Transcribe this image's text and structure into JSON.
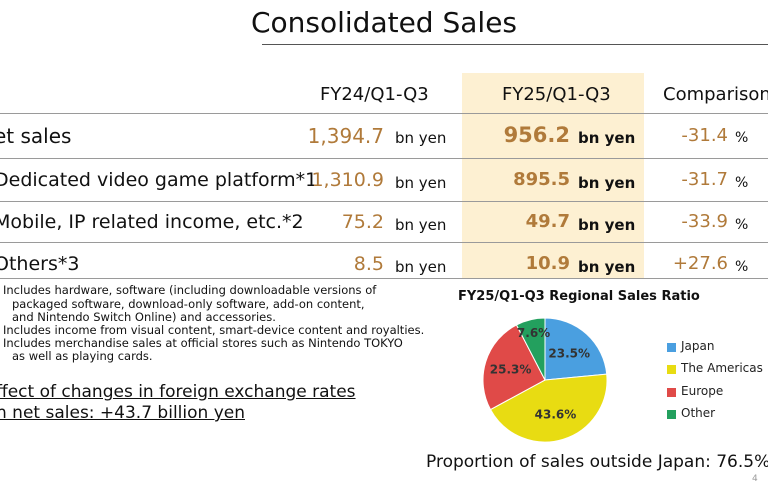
{
  "title": "Consolidated Sales",
  "columns": {
    "fy24": "FY24/Q1-Q3",
    "fy25": "FY25/Q1-Q3",
    "comparison": "Comparison"
  },
  "unit": "bn yen",
  "pct_unit": "%",
  "rows": [
    {
      "label": "et sales",
      "fy24": "1,394.7",
      "fy25": "956.2",
      "comparison": "-31.4"
    },
    {
      "label": "Dedicated video game platform*1",
      "fy24": "1,310.9",
      "fy25": "895.5",
      "comparison": "-31.7"
    },
    {
      "label": "Mobile, IP related income, etc.*2",
      "fy24": "75.2",
      "fy25": "49.7",
      "comparison": "-33.9"
    },
    {
      "label": "Others*3",
      "fy24": "8.5",
      "fy25": "10.9",
      "comparison": "+27.6"
    }
  ],
  "notes": [
    "Includes hardware, software (including downloadable versions of",
    "packaged software, download-only software, add-on content,",
    "and Nintendo Switch Online) and accessories.",
    "Includes income from visual content, smart-device content and royalties.",
    "Includes merchandise sales at official stores such as Nintendo TOKYO",
    "as well as playing cards."
  ],
  "fx": {
    "line1": "ffect of changes in foreign exchange rates",
    "line2": "n net sales: +43.7 billion yen"
  },
  "chart_data": {
    "type": "pie",
    "title": "FY25/Q1-Q3 Regional Sales Ratio",
    "labels": [
      "Japan",
      "The Americas",
      "Europe",
      "Other"
    ],
    "values": [
      23.5,
      43.6,
      25.3,
      7.6
    ],
    "value_labels": [
      "23.5%",
      "43.6%",
      "25.3%",
      "7.6%"
    ],
    "colors": [
      "#4a9fe0",
      "#e8dc12",
      "#e04a48",
      "#23a05e"
    ],
    "legend_position": "right"
  },
  "outside_japan": "Proportion of sales outside Japan: 76.5%",
  "page_number": "4"
}
